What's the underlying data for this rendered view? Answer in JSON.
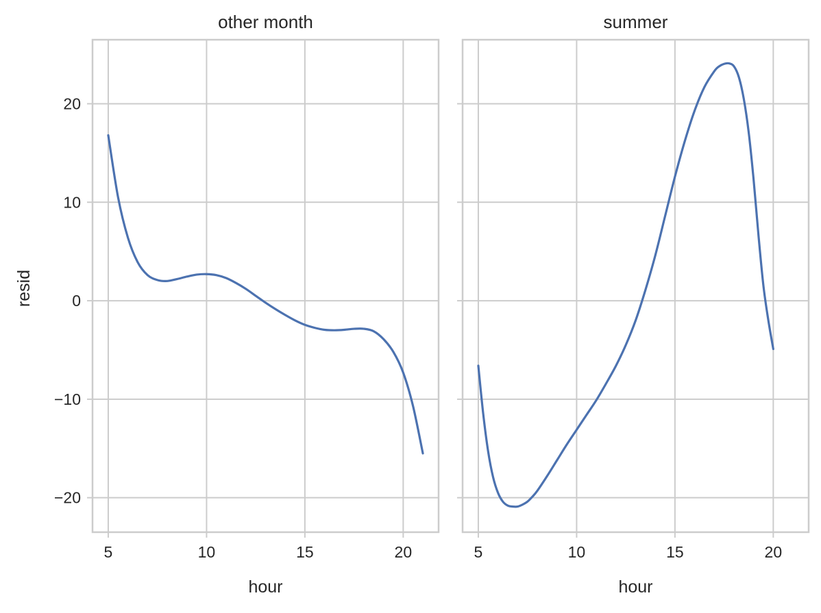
{
  "chart_data": {
    "type": "line",
    "layout": "two facets side by side, shared y axis",
    "grid": true,
    "ylabel": "resid",
    "ylim": [
      -23.5,
      26.5
    ],
    "yticks": [
      -20,
      -10,
      0,
      10,
      20
    ],
    "ytick_labels": [
      "−20",
      "−10",
      "0",
      "10",
      "20"
    ],
    "line_color": "#4c72b0",
    "panels": [
      {
        "title": "other month",
        "xlabel": "hour",
        "xlim": [
          4.2,
          21.8
        ],
        "xticks": [
          5,
          10,
          15,
          20
        ],
        "xtick_labels": [
          "5",
          "10",
          "15",
          "20"
        ],
        "series": [
          {
            "x": [
              5,
              5.5,
              6,
              6.5,
              7,
              7.5,
              8,
              8.5,
              9,
              9.5,
              10,
              10.5,
              11,
              11.5,
              12,
              12.5,
              13,
              13.5,
              14,
              14.5,
              15,
              15.5,
              16,
              16.5,
              17,
              17.5,
              18,
              18.5,
              19,
              19.5,
              20,
              20.5,
              21
            ],
            "y": [
              16.8,
              10.5,
              6.4,
              3.9,
              2.6,
              2.1,
              2.0,
              2.2,
              2.45,
              2.65,
              2.7,
              2.6,
              2.3,
              1.8,
              1.2,
              0.5,
              -0.2,
              -0.85,
              -1.45,
              -2.0,
              -2.45,
              -2.75,
              -2.95,
              -3.0,
              -2.95,
              -2.85,
              -2.85,
              -3.1,
              -3.9,
              -5.2,
              -7.3,
              -10.7,
              -15.5
            ]
          }
        ]
      },
      {
        "title": "summer",
        "xlabel": "hour",
        "xlim": [
          4.2,
          21.8
        ],
        "xticks": [
          5,
          10,
          15,
          20
        ],
        "xtick_labels": [
          "5",
          "10",
          "15",
          "20"
        ],
        "series": [
          {
            "x": [
              5,
              5.25,
              5.5,
              5.75,
              6,
              6.25,
              6.5,
              6.75,
              7,
              7.25,
              7.5,
              7.75,
              8,
              8.5,
              9,
              9.5,
              10,
              10.5,
              11,
              11.5,
              12,
              12.5,
              13,
              13.5,
              14,
              14.5,
              15,
              15.5,
              16,
              16.5,
              17,
              17.25,
              17.5,
              17.75,
              18,
              18.25,
              18.5,
              18.75,
              19,
              19.25,
              19.5,
              19.75,
              20
            ],
            "y": [
              -6.6,
              -11.5,
              -15.3,
              -17.9,
              -19.5,
              -20.4,
              -20.8,
              -20.9,
              -20.9,
              -20.7,
              -20.4,
              -19.9,
              -19.3,
              -17.8,
              -16.2,
              -14.6,
              -13.1,
              -11.6,
              -10.1,
              -8.4,
              -6.6,
              -4.5,
              -2.0,
              1.1,
              4.6,
              8.6,
              12.6,
              16.2,
              19.3,
              21.7,
              23.3,
              23.8,
              24.05,
              24.1,
              23.8,
              22.7,
              20.5,
              17.1,
              12.3,
              6.6,
              1.5,
              -2.0,
              -4.9
            ]
          }
        ]
      }
    ]
  }
}
